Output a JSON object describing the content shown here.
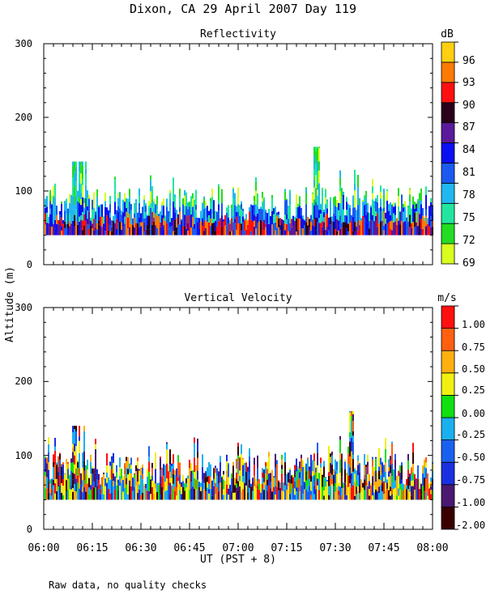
{
  "title": "Dixon, CA 29 April 2007  Day 119",
  "ylabel": "Altitude (m)",
  "xlabel": "UT  (PST + 8)",
  "footnote": "Raw data, no quality checks",
  "colors": {
    "reflectivity": [
      "#d8ff20",
      "#22dd22",
      "#22e6a0",
      "#20b8f0",
      "#1a5af0",
      "#0a10f0",
      "#5a1a9a",
      "#2a0018",
      "#ff1010",
      "#ff7a00",
      "#ffd010"
    ],
    "velocity": [
      "#3a0000",
      "#4a1870",
      "#1a30e0",
      "#1a60f0",
      "#1ab0f0",
      "#10e010",
      "#f0f010",
      "#ffb010",
      "#ff6010",
      "#ff1010"
    ]
  },
  "chart_data": [
    {
      "type": "heatmap",
      "title": "Reflectivity",
      "variable": "reflectivity",
      "colorbar_unit": "dB",
      "colorbar_labels": [
        "96",
        "93",
        "90",
        "87",
        "84",
        "81",
        "78",
        "75",
        "72",
        "69"
      ],
      "ylim": [
        0,
        300
      ],
      "yticks": [
        "0",
        "100",
        "200",
        "300"
      ],
      "x_tick_labels": [
        "06:00",
        "06:15",
        "06:30",
        "06:45",
        "07:00",
        "07:15",
        "07:30",
        "07:45",
        "08:00"
      ],
      "xlim_hours": [
        6.0,
        8.0
      ],
      "data_altitude_range_m": [
        40,
        160
      ],
      "description": "Time-height reflectivity, mostly 75-84 dB between 40 and 100 m; tallest echoes near 07:24 reaching ~160 m"
    },
    {
      "type": "heatmap",
      "title": "Vertical Velocity",
      "variable": "velocity",
      "colorbar_unit": "m/s",
      "colorbar_labels": [
        "1.00",
        "0.75",
        "0.50",
        "0.25",
        "0.00",
        "-0.25",
        "-0.50",
        "-0.75",
        "-1.00",
        "-2.00"
      ],
      "ylim": [
        0,
        300
      ],
      "yticks": [
        "0",
        "100",
        "200",
        "300"
      ],
      "x_tick_labels": [
        "06:00",
        "06:15",
        "06:30",
        "06:45",
        "07:00",
        "07:15",
        "07:30",
        "07:45",
        "08:00"
      ],
      "xlim_hours": [
        6.0,
        8.0
      ],
      "data_altitude_range_m": [
        40,
        160
      ],
      "description": "Time-height vertical velocity, mostly -0.75 to 0.5 m/s between 40 and 100 m"
    }
  ]
}
